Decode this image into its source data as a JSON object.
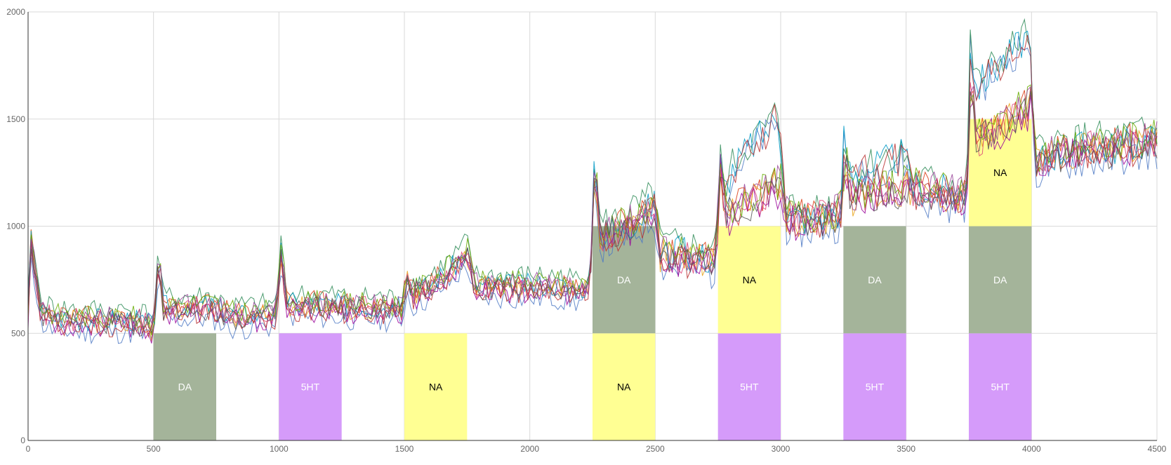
{
  "chart_data": {
    "type": "line",
    "xlim": [
      0,
      4500
    ],
    "ylim": [
      0,
      2000
    ],
    "x_ticks": [
      0,
      500,
      1000,
      1500,
      2000,
      2500,
      3000,
      3500,
      4000,
      4500
    ],
    "y_ticks": [
      0,
      500,
      1000,
      1500,
      2000
    ],
    "grid": true,
    "legend": "none",
    "title": "",
    "xlabel": "",
    "ylabel": "",
    "colors": {
      "DA": "#a4b49a",
      "5HT": "#d59bfa",
      "NA": "#ffff93",
      "label_light": "#ffffff",
      "label_dark": "#000000",
      "grid": "#d9d9d9",
      "axis": "#333333"
    },
    "blocks": [
      {
        "label": "DA",
        "x0": 500,
        "x1": 750,
        "y0": 0,
        "y1": 500
      },
      {
        "label": "5HT",
        "x0": 1000,
        "x1": 1250,
        "y0": 0,
        "y1": 500
      },
      {
        "label": "NA",
        "x0": 1500,
        "x1": 1750,
        "y0": 0,
        "y1": 500
      },
      {
        "label": "NA",
        "x0": 2250,
        "x1": 2500,
        "y0": 0,
        "y1": 500
      },
      {
        "label": "DA",
        "x0": 2250,
        "x1": 2500,
        "y0": 500,
        "y1": 1000
      },
      {
        "label": "5HT",
        "x0": 2750,
        "x1": 3000,
        "y0": 0,
        "y1": 500
      },
      {
        "label": "NA",
        "x0": 2750,
        "x1": 3000,
        "y0": 500,
        "y1": 1000
      },
      {
        "label": "5HT",
        "x0": 3250,
        "x1": 3500,
        "y0": 0,
        "y1": 500
      },
      {
        "label": "DA",
        "x0": 3250,
        "x1": 3500,
        "y0": 500,
        "y1": 1000
      },
      {
        "label": "5HT",
        "x0": 3750,
        "x1": 4000,
        "y0": 0,
        "y1": 500
      },
      {
        "label": "DA",
        "x0": 3750,
        "x1": 4000,
        "y0": 500,
        "y1": 1000
      },
      {
        "label": "NA",
        "x0": 3750,
        "x1": 4000,
        "y0": 1000,
        "y1": 1500
      }
    ],
    "envelope": [
      [
        0,
        600
      ],
      [
        10,
        950
      ],
      [
        50,
        600
      ],
      [
        100,
        570
      ],
      [
        200,
        560
      ],
      [
        300,
        560
      ],
      [
        400,
        560
      ],
      [
        480,
        540
      ],
      [
        500,
        510
      ],
      [
        520,
        850
      ],
      [
        540,
        620
      ],
      [
        600,
        620
      ],
      [
        700,
        625
      ],
      [
        750,
        620
      ],
      [
        800,
        580
      ],
      [
        900,
        580
      ],
      [
        990,
        590
      ],
      [
        1010,
        900
      ],
      [
        1030,
        640
      ],
      [
        1100,
        630
      ],
      [
        1200,
        630
      ],
      [
        1300,
        620
      ],
      [
        1400,
        620
      ],
      [
        1490,
        610
      ],
      [
        1510,
        760
      ],
      [
        1530,
        680
      ],
      [
        1600,
        720
      ],
      [
        1700,
        810
      ],
      [
        1750,
        880
      ],
      [
        1780,
        720
      ],
      [
        1900,
        720
      ],
      [
        2000,
        720
      ],
      [
        2100,
        720
      ],
      [
        2200,
        700
      ],
      [
        2240,
        720
      ],
      [
        2260,
        1350
      ],
      [
        2280,
        960
      ],
      [
        2350,
        980
      ],
      [
        2450,
        1050
      ],
      [
        2500,
        1100
      ],
      [
        2520,
        870
      ],
      [
        2600,
        860
      ],
      [
        2700,
        850
      ],
      [
        2740,
        830
      ],
      [
        2760,
        1300
      ],
      [
        2780,
        1050
      ],
      [
        2850,
        1100
      ],
      [
        2950,
        1150
      ],
      [
        3000,
        1200
      ],
      [
        3020,
        1050
      ],
      [
        3100,
        1030
      ],
      [
        3200,
        1050
      ],
      [
        3240,
        1070
      ],
      [
        3260,
        1300
      ],
      [
        3280,
        1130
      ],
      [
        3350,
        1150
      ],
      [
        3450,
        1170
      ],
      [
        3500,
        1180
      ],
      [
        3600,
        1160
      ],
      [
        3740,
        1150
      ],
      [
        3760,
        1750
      ],
      [
        3780,
        1400
      ],
      [
        3850,
        1450
      ],
      [
        3950,
        1530
      ],
      [
        4000,
        1560
      ],
      [
        4020,
        1300
      ],
      [
        4100,
        1340
      ],
      [
        4200,
        1360
      ],
      [
        4300,
        1360
      ],
      [
        4400,
        1380
      ],
      [
        4500,
        1400
      ]
    ],
    "high_group": [
      [
        2750,
        1400
      ],
      [
        2775,
        1150
      ],
      [
        2800,
        1250
      ],
      [
        2850,
        1330
      ],
      [
        2900,
        1400
      ],
      [
        2950,
        1450
      ],
      [
        2990,
        1520
      ],
      [
        3020,
        1130
      ],
      [
        3250,
        1420
      ],
      [
        3280,
        1230
      ],
      [
        3350,
        1270
      ],
      [
        3420,
        1300
      ],
      [
        3480,
        1330
      ],
      [
        3520,
        1250
      ],
      [
        3755,
        1850
      ],
      [
        3780,
        1650
      ],
      [
        3850,
        1730
      ],
      [
        3920,
        1810
      ],
      [
        3990,
        1900
      ],
      [
        4010,
        1350
      ]
    ],
    "series": [
      {
        "color": "#4e79c4",
        "offset": -35,
        "seed": 11,
        "high": true
      },
      {
        "color": "#dc3912",
        "offset": 15,
        "seed": 23,
        "high": false
      },
      {
        "color": "#e8a317",
        "offset": -5,
        "seed": 37,
        "high": false
      },
      {
        "color": "#2e8b57",
        "offset": 30,
        "seed": 41,
        "high": true
      },
      {
        "color": "#990099",
        "offset": -25,
        "seed": 53,
        "high": false
      },
      {
        "color": "#0099c6",
        "offset": 5,
        "seed": 67,
        "high": true
      },
      {
        "color": "#dd4477",
        "offset": 0,
        "seed": 71,
        "high": false
      },
      {
        "color": "#66aa00",
        "offset": 20,
        "seed": 83,
        "high": false
      },
      {
        "color": "#b82e2e",
        "offset": -15,
        "seed": 97,
        "high": true
      },
      {
        "color": "#994499",
        "offset": 10,
        "seed": 103,
        "high": false
      },
      {
        "color": "#555555",
        "offset": -10,
        "seed": 109,
        "high": false
      }
    ]
  }
}
